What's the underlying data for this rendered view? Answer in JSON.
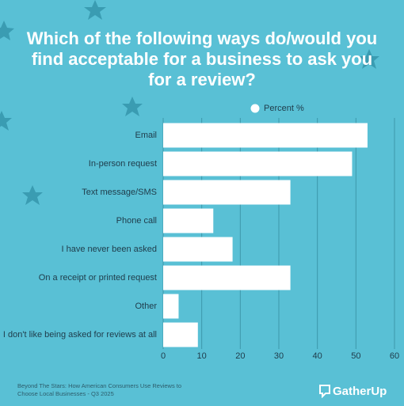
{
  "chart_data": {
    "type": "bar",
    "orientation": "horizontal",
    "title": "Which of the following ways do/would you find acceptable for a business to ask you for a review?",
    "categories": [
      "Email",
      "In-person request",
      "Text message/SMS",
      "Phone call",
      "I have never been asked",
      "On a receipt or printed request",
      "Other",
      "I don't like being asked for reviews at all"
    ],
    "series": [
      {
        "name": "Percent %",
        "color": "#ffffff",
        "values": [
          53,
          49,
          33,
          13,
          18,
          33,
          4,
          9
        ]
      }
    ],
    "xlim": [
      0,
      60
    ],
    "xticks": [
      0,
      10,
      20,
      30,
      40,
      50,
      60
    ],
    "grid": true,
    "source": "Beyond The Stars: How American Consumers Use Reviews to Choose Local Businesses - Q3 2025",
    "brand": "GatherUp"
  }
}
